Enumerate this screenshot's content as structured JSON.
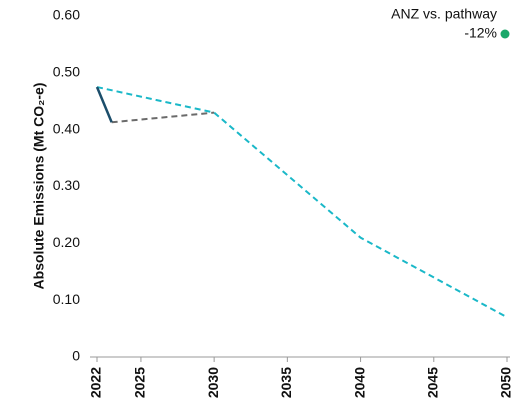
{
  "chart_data": {
    "type": "line",
    "y_label": "Absolute Emissions (Mt CO₂-e)",
    "annotation": {
      "title": "ANZ vs. pathway",
      "value": "-12%",
      "color": "#1aa86a"
    },
    "xlim": [
      2022,
      2050
    ],
    "xticks": [
      2022,
      2025,
      2030,
      2035,
      2040,
      2045,
      2050
    ],
    "ylim": [
      0,
      0.6
    ],
    "yticks": [
      0,
      {
        "value": 0.1,
        "label": "0.10"
      },
      {
        "value": 0.2,
        "label": "0.20"
      },
      {
        "value": 0.3,
        "label": "0.30"
      },
      {
        "value": 0.4,
        "label": "0.40"
      },
      {
        "value": 0.5,
        "label": "0.50"
      },
      {
        "value": 0.6,
        "label": "0.60"
      }
    ],
    "series": [
      {
        "color": "#1ab8c8",
        "dashed": true,
        "x": [
          2022,
          2030,
          2040,
          2050
        ],
        "values": [
          0.475,
          0.43,
          0.21,
          0.07
        ]
      },
      {
        "color": "#6b6b6b",
        "dashed": true,
        "x": [
          2023,
          2030
        ],
        "values": [
          0.413,
          0.43
        ]
      },
      {
        "color": "#1c4e6b",
        "dashed": false,
        "x": [
          2022,
          2023
        ],
        "values": [
          0.475,
          0.413
        ]
      }
    ]
  }
}
